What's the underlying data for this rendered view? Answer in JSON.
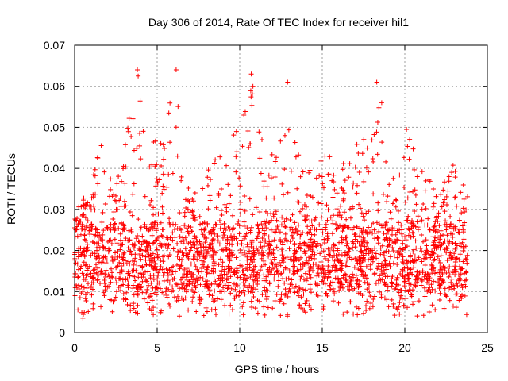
{
  "chart_data": {
    "type": "scatter",
    "title": "Day 306 of 2014, Rate Of TEC Index for receiver hil1",
    "xlabel": "GPS time / hours",
    "ylabel": "ROTI / TECUs",
    "xlim": [
      0,
      25
    ],
    "ylim": [
      0,
      0.07
    ],
    "xticks": [
      "0",
      "5",
      "10",
      "15",
      "20",
      "25"
    ],
    "yticks": [
      "0",
      "0.01",
      "0.02",
      "0.03",
      "0.04",
      "0.05",
      "0.06",
      "0.07"
    ],
    "grid": true,
    "marker": "plus",
    "color": "#ff0000",
    "series": [
      {
        "name": "ROTI",
        "x_range": [
          0,
          23.8
        ],
        "typical_range": [
          0.01,
          0.025
        ],
        "envelope": [
          {
            "x": 0.0,
            "y": 0.03
          },
          {
            "x": 1.0,
            "y": 0.035
          },
          {
            "x": 1.6,
            "y": 0.049
          },
          {
            "x": 2.5,
            "y": 0.035
          },
          {
            "x": 3.2,
            "y": 0.051
          },
          {
            "x": 3.8,
            "y": 0.064
          },
          {
            "x": 4.5,
            "y": 0.045
          },
          {
            "x": 5.5,
            "y": 0.052
          },
          {
            "x": 6.1,
            "y": 0.064
          },
          {
            "x": 7.0,
            "y": 0.035
          },
          {
            "x": 8.0,
            "y": 0.04
          },
          {
            "x": 9.0,
            "y": 0.045
          },
          {
            "x": 9.8,
            "y": 0.049
          },
          {
            "x": 10.7,
            "y": 0.063
          },
          {
            "x": 11.5,
            "y": 0.047
          },
          {
            "x": 12.3,
            "y": 0.045
          },
          {
            "x": 12.9,
            "y": 0.061
          },
          {
            "x": 13.8,
            "y": 0.042
          },
          {
            "x": 14.9,
            "y": 0.048
          },
          {
            "x": 16.0,
            "y": 0.04
          },
          {
            "x": 17.0,
            "y": 0.045
          },
          {
            "x": 18.3,
            "y": 0.061
          },
          {
            "x": 19.5,
            "y": 0.035
          },
          {
            "x": 20.1,
            "y": 0.05
          },
          {
            "x": 21.0,
            "y": 0.04
          },
          {
            "x": 22.0,
            "y": 0.035
          },
          {
            "x": 23.0,
            "y": 0.042
          },
          {
            "x": 23.8,
            "y": 0.044
          }
        ],
        "notable_points": [
          {
            "x": 3.8,
            "y": 0.064
          },
          {
            "x": 3.85,
            "y": 0.0625
          },
          {
            "x": 6.15,
            "y": 0.064
          },
          {
            "x": 10.7,
            "y": 0.063
          },
          {
            "x": 10.8,
            "y": 0.06
          },
          {
            "x": 12.9,
            "y": 0.061
          },
          {
            "x": 18.3,
            "y": 0.061
          },
          {
            "x": 18.6,
            "y": 0.056
          },
          {
            "x": 9.8,
            "y": 0.049
          },
          {
            "x": 20.1,
            "y": 0.0495
          },
          {
            "x": 0.5,
            "y": 0.0035
          },
          {
            "x": 16.5,
            "y": 0.005
          }
        ]
      }
    ]
  }
}
